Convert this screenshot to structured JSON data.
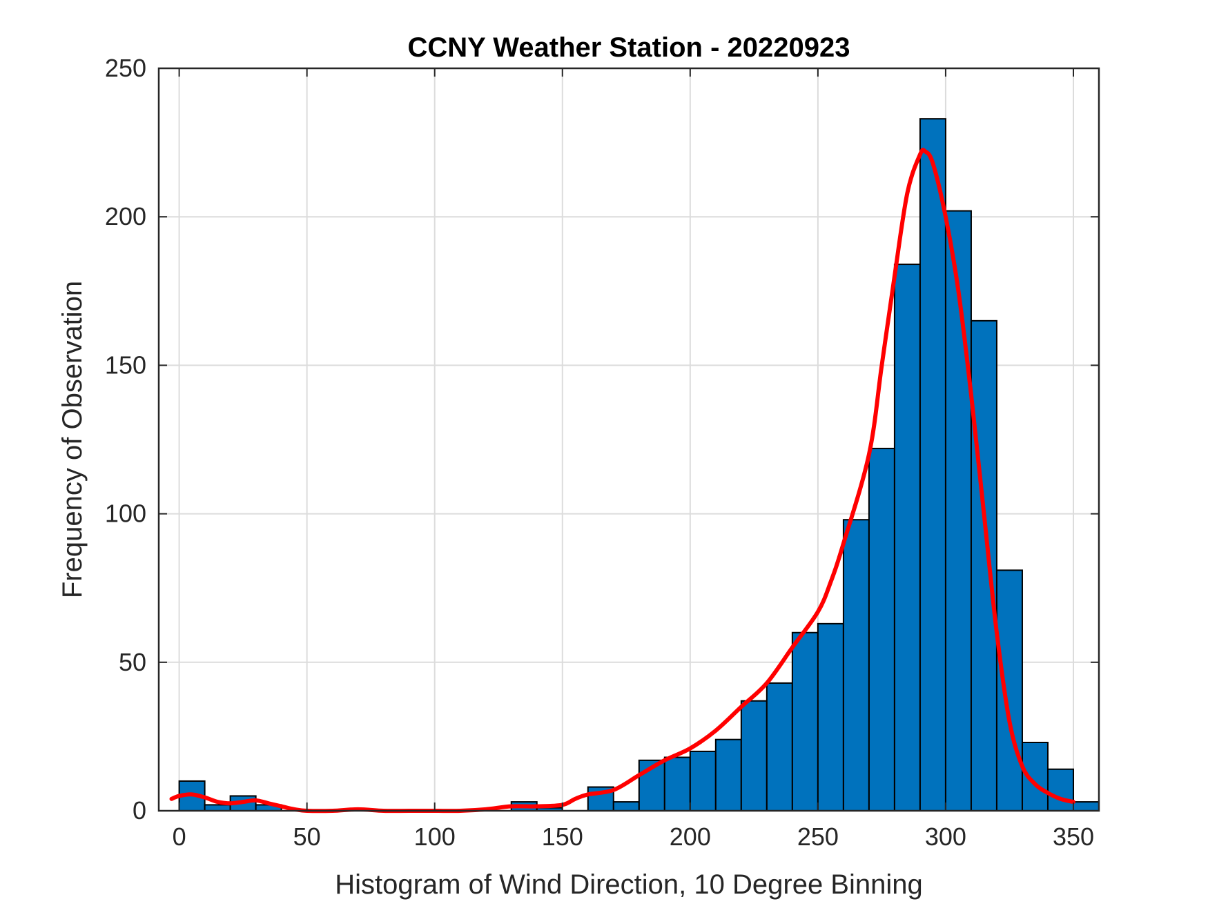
{
  "chart_data": {
    "type": "bar",
    "title": "CCNY Weather Station - 20220923",
    "xlabel": "Histogram of Wind Direction, 10 Degree Binning",
    "ylabel": "Frequency of Observation",
    "xlim": [
      -8,
      360
    ],
    "ylim": [
      0,
      250
    ],
    "grid": true,
    "bin_width": 10,
    "bin_edges_start": [
      0,
      10,
      20,
      30,
      40,
      50,
      60,
      70,
      80,
      90,
      100,
      110,
      120,
      130,
      140,
      150,
      160,
      170,
      180,
      190,
      200,
      210,
      220,
      230,
      240,
      250,
      260,
      270,
      280,
      290,
      300,
      310,
      320,
      330,
      340,
      350
    ],
    "values": [
      10,
      2,
      5,
      2,
      0,
      0,
      0,
      0,
      0,
      0,
      0,
      0,
      0,
      3,
      1,
      0,
      8,
      3,
      17,
      18,
      20,
      24,
      37,
      43,
      60,
      63,
      98,
      122,
      184,
      233,
      202,
      165,
      81,
      23,
      14,
      3
    ],
    "x_ticks": [
      0,
      50,
      100,
      150,
      200,
      250,
      300,
      350
    ],
    "x_tick_labels": [
      "0",
      "50",
      "100",
      "150",
      "200",
      "250",
      "300",
      "350"
    ],
    "y_ticks": [
      0,
      50,
      100,
      150,
      200,
      250
    ],
    "y_tick_labels": [
      "0",
      "50",
      "100",
      "150",
      "200",
      "250"
    ],
    "bar_color": "#0072BD",
    "fit_curve": {
      "color": "#FF0000",
      "x": [
        -3,
        0,
        5,
        10,
        15,
        20,
        25,
        30,
        35,
        40,
        45,
        50,
        60,
        70,
        80,
        90,
        100,
        110,
        120,
        130,
        140,
        150,
        155,
        160,
        170,
        180,
        190,
        200,
        210,
        220,
        230,
        240,
        250,
        255,
        260,
        270,
        275,
        280,
        285,
        290,
        292,
        295,
        300,
        305,
        310,
        315,
        320,
        325,
        330,
        335,
        340,
        345,
        350
      ],
      "y": [
        4,
        5,
        5.5,
        4.5,
        3,
        2.5,
        3,
        3.5,
        2.5,
        1.5,
        0.5,
        0,
        0,
        0.5,
        0,
        0,
        0,
        0,
        0.5,
        1.5,
        1.5,
        2,
        4,
        5.5,
        7,
        12,
        17,
        21,
        27,
        35,
        43,
        55,
        67,
        77,
        90,
        120,
        150,
        180,
        208,
        221,
        222,
        218,
        200,
        175,
        140,
        100,
        60,
        30,
        15,
        9,
        6,
        4,
        3
      ]
    }
  }
}
